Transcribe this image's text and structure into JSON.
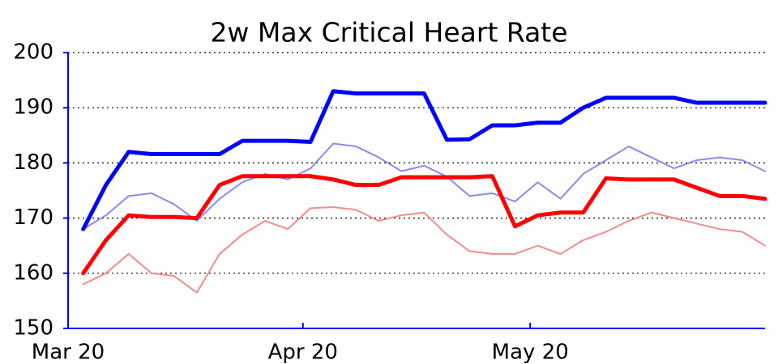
{
  "chart_data": {
    "type": "line",
    "title": "2w Max Critical Heart Rate",
    "x": [
      2,
      5,
      8,
      11,
      14,
      17,
      20,
      23,
      26,
      29,
      32,
      35,
      38,
      41,
      44,
      47,
      50,
      53,
      56,
      59,
      62,
      65,
      68,
      71,
      74,
      77,
      80,
      83,
      86,
      89,
      92
    ],
    "xlim": [
      0,
      92
    ],
    "xticks": [
      {
        "value": 0,
        "label": "Mar 20"
      },
      {
        "value": 31,
        "label": "Apr 20"
      },
      {
        "value": 61,
        "label": "May 20"
      }
    ],
    "ylim": [
      150,
      200
    ],
    "yticks": [
      150,
      160,
      170,
      180,
      190,
      200
    ],
    "grid": true,
    "axis_color": "#0000ff",
    "series": [
      {
        "color": "#8a8af5",
        "linewidth": 2,
        "values": [
          168,
          170.5,
          174,
          174.5,
          172.5,
          169.5,
          173.5,
          176.5,
          178,
          177,
          179,
          183.5,
          183,
          181,
          178.5,
          179.5,
          177.5,
          174,
          174.5,
          173,
          176.5,
          173.5,
          178,
          180.5,
          183,
          181,
          179,
          180.5,
          181,
          180.5,
          178.5
        ]
      },
      {
        "color": "#f58a8a",
        "linewidth": 2,
        "values": [
          158,
          160,
          163.5,
          160,
          159.5,
          156.5,
          163.5,
          167,
          169.5,
          168,
          171.8,
          172,
          171.5,
          169.5,
          170.5,
          171,
          167,
          164,
          163.5,
          163.5,
          165,
          163.5,
          166,
          167.5,
          169.5,
          171,
          170,
          169,
          168,
          167.5,
          165
        ]
      },
      {
        "color": "#ff0000",
        "linewidth": 5,
        "values": [
          160,
          166,
          170.5,
          170.2,
          170.2,
          170,
          176,
          177.6,
          177.6,
          177.6,
          177.6,
          177,
          176,
          176,
          177.4,
          177.4,
          177.4,
          177.4,
          177.6,
          168.5,
          170.5,
          171,
          171,
          177.2,
          177,
          177,
          177,
          175.5,
          174,
          174,
          173.5
        ]
      },
      {
        "color": "#0000ff",
        "linewidth": 5,
        "values": [
          168,
          176,
          182,
          181.6,
          181.6,
          181.6,
          181.6,
          184,
          184,
          184,
          183.8,
          193,
          192.6,
          192.6,
          192.6,
          192.6,
          184.2,
          184.3,
          186.8,
          186.8,
          187.3,
          187.3,
          190,
          191.8,
          191.8,
          191.8,
          191.8,
          190.9,
          190.9,
          190.9,
          190.9
        ]
      }
    ]
  }
}
